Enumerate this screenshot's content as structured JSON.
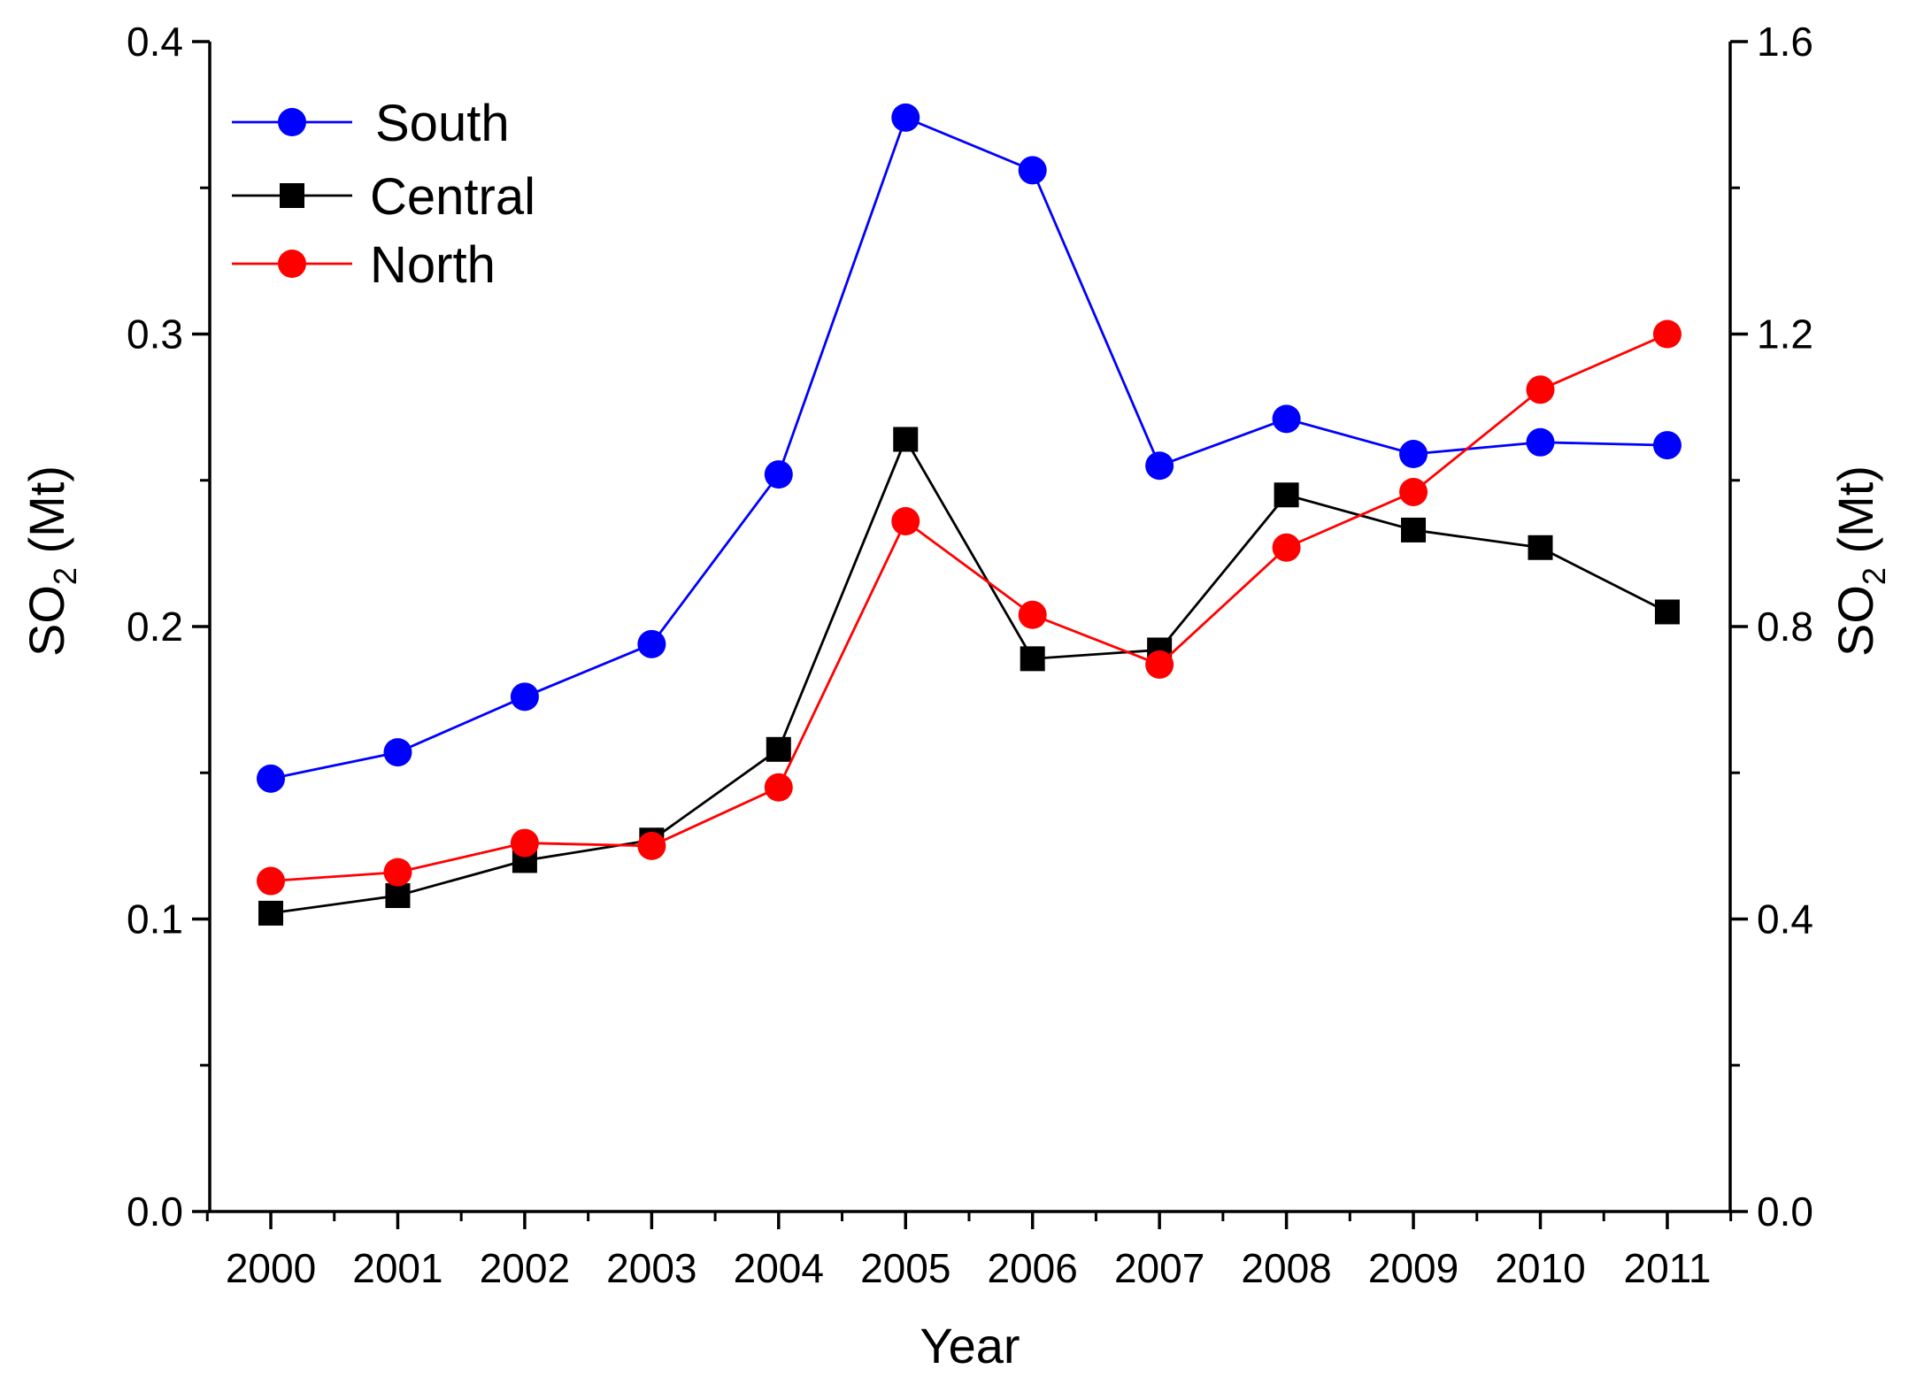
{
  "chart_data": {
    "type": "line",
    "title": "",
    "xlabel": "Year",
    "ylabel_left": {
      "main": "SO",
      "sub": "2",
      "rest": " (Mt)"
    },
    "ylabel_right": {
      "main": "SO",
      "sub": "2",
      "rest": " (Mt)"
    },
    "x": [
      "2000",
      "2001",
      "2002",
      "2003",
      "2004",
      "2005",
      "2006",
      "2007",
      "2008",
      "2009",
      "2010",
      "2011"
    ],
    "ylim_left": [
      0.0,
      0.4
    ],
    "ylim_right": [
      0.0,
      1.6
    ],
    "yticks_left": [
      "0.0",
      "0.1",
      "0.2",
      "0.3",
      "0.4"
    ],
    "yticks_right": [
      "0.0",
      "0.4",
      "0.8",
      "1.2",
      "1.6"
    ],
    "grid": false,
    "legend_position": "top-left",
    "series": [
      {
        "name": "South",
        "axis": "left",
        "color": "#0000ff",
        "marker": "circle",
        "values": [
          0.148,
          0.157,
          0.176,
          0.194,
          0.252,
          0.374,
          0.356,
          0.255,
          0.271,
          0.259,
          0.263,
          0.262
        ]
      },
      {
        "name": "Central",
        "axis": "left",
        "color": "#000000",
        "marker": "square",
        "values": [
          0.102,
          0.108,
          0.12,
          0.127,
          0.158,
          0.264,
          0.189,
          0.192,
          0.245,
          0.233,
          0.227,
          0.205
        ]
      },
      {
        "name": "North",
        "axis": "left",
        "color": "#ff0000",
        "marker": "circle",
        "values": [
          0.113,
          0.116,
          0.126,
          0.125,
          0.145,
          0.236,
          0.204,
          0.187,
          0.227,
          0.246,
          0.281,
          0.3
        ]
      }
    ]
  }
}
